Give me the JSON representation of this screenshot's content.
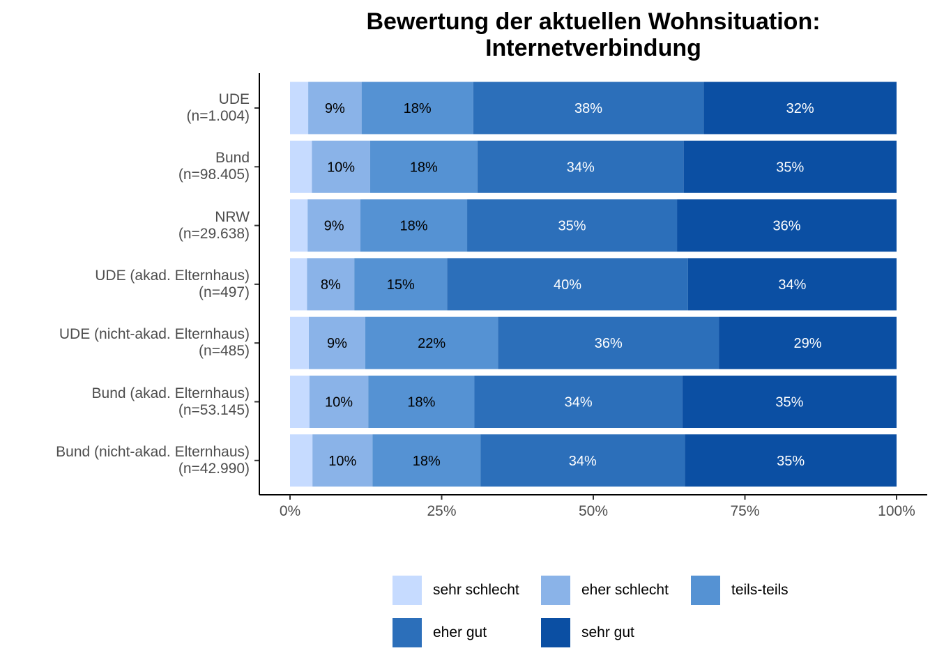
{
  "chart_data": {
    "type": "bar",
    "orientation": "horizontal",
    "stacked": true,
    "title": [
      "Bewertung der aktuellen Wohnsituation:",
      "Internetverbindung"
    ],
    "categories": [
      [
        "UDE",
        "(n=1.004)"
      ],
      [
        "Bund",
        "(n=98.405)"
      ],
      [
        "NRW",
        "(n=29.638)"
      ],
      [
        "UDE (akad. Elternhaus)",
        "(n=497)"
      ],
      [
        "UDE (nicht-akad. Elternhaus)",
        "(n=485)"
      ],
      [
        "Bund (akad. Elternhaus)",
        "(n=53.145)"
      ],
      [
        "Bund (nicht-akad. Elternhaus)",
        "(n=42.990)"
      ]
    ],
    "xlim": [
      0,
      100
    ],
    "xticks": [
      "0%",
      "25%",
      "50%",
      "75%",
      "100%"
    ],
    "xtick_values": [
      0,
      25,
      50,
      75,
      100
    ],
    "series": [
      {
        "name": "sehr schlecht",
        "color": "#c6dbff",
        "text_color": "#000000",
        "values": [
          3,
          3.6,
          2.9,
          2.8,
          3.1,
          3.2,
          3.7
        ],
        "labels": [
          "",
          "",
          "",
          "",
          "",
          "",
          ""
        ]
      },
      {
        "name": "eher schlecht",
        "color": "#8ab3e8",
        "text_color": "#000000",
        "values": [
          8.8,
          9.6,
          8.7,
          7.8,
          9.3,
          9.7,
          9.9
        ],
        "labels": [
          "9%",
          "10%",
          "9%",
          "8%",
          "9%",
          "10%",
          "10%"
        ]
      },
      {
        "name": "teils-teils",
        "color": "#5592d3",
        "text_color": "#000000",
        "values": [
          18.4,
          17.7,
          17.6,
          15.3,
          21.9,
          17.5,
          17.8
        ],
        "labels": [
          "18%",
          "18%",
          "18%",
          "15%",
          "22%",
          "18%",
          "18%"
        ]
      },
      {
        "name": "eher gut",
        "color": "#2c6fba",
        "text_color": "#ffffff",
        "values": [
          38,
          34,
          34.6,
          39.7,
          36.4,
          34.3,
          33.7
        ],
        "labels": [
          "38%",
          "34%",
          "35%",
          "40%",
          "36%",
          "34%",
          "34%"
        ]
      },
      {
        "name": "sehr gut",
        "color": "#0b4fa3",
        "text_color": "#ffffff",
        "values": [
          31.8,
          35.1,
          36.2,
          34.4,
          29.3,
          35.3,
          34.9
        ],
        "labels": [
          "32%",
          "35%",
          "36%",
          "34%",
          "29%",
          "35%",
          "35%"
        ]
      }
    ],
    "legend": {
      "position": "bottom",
      "entries": [
        "sehr schlecht",
        "eher schlecht",
        "teils-teils",
        "eher gut",
        "sehr gut"
      ]
    }
  }
}
